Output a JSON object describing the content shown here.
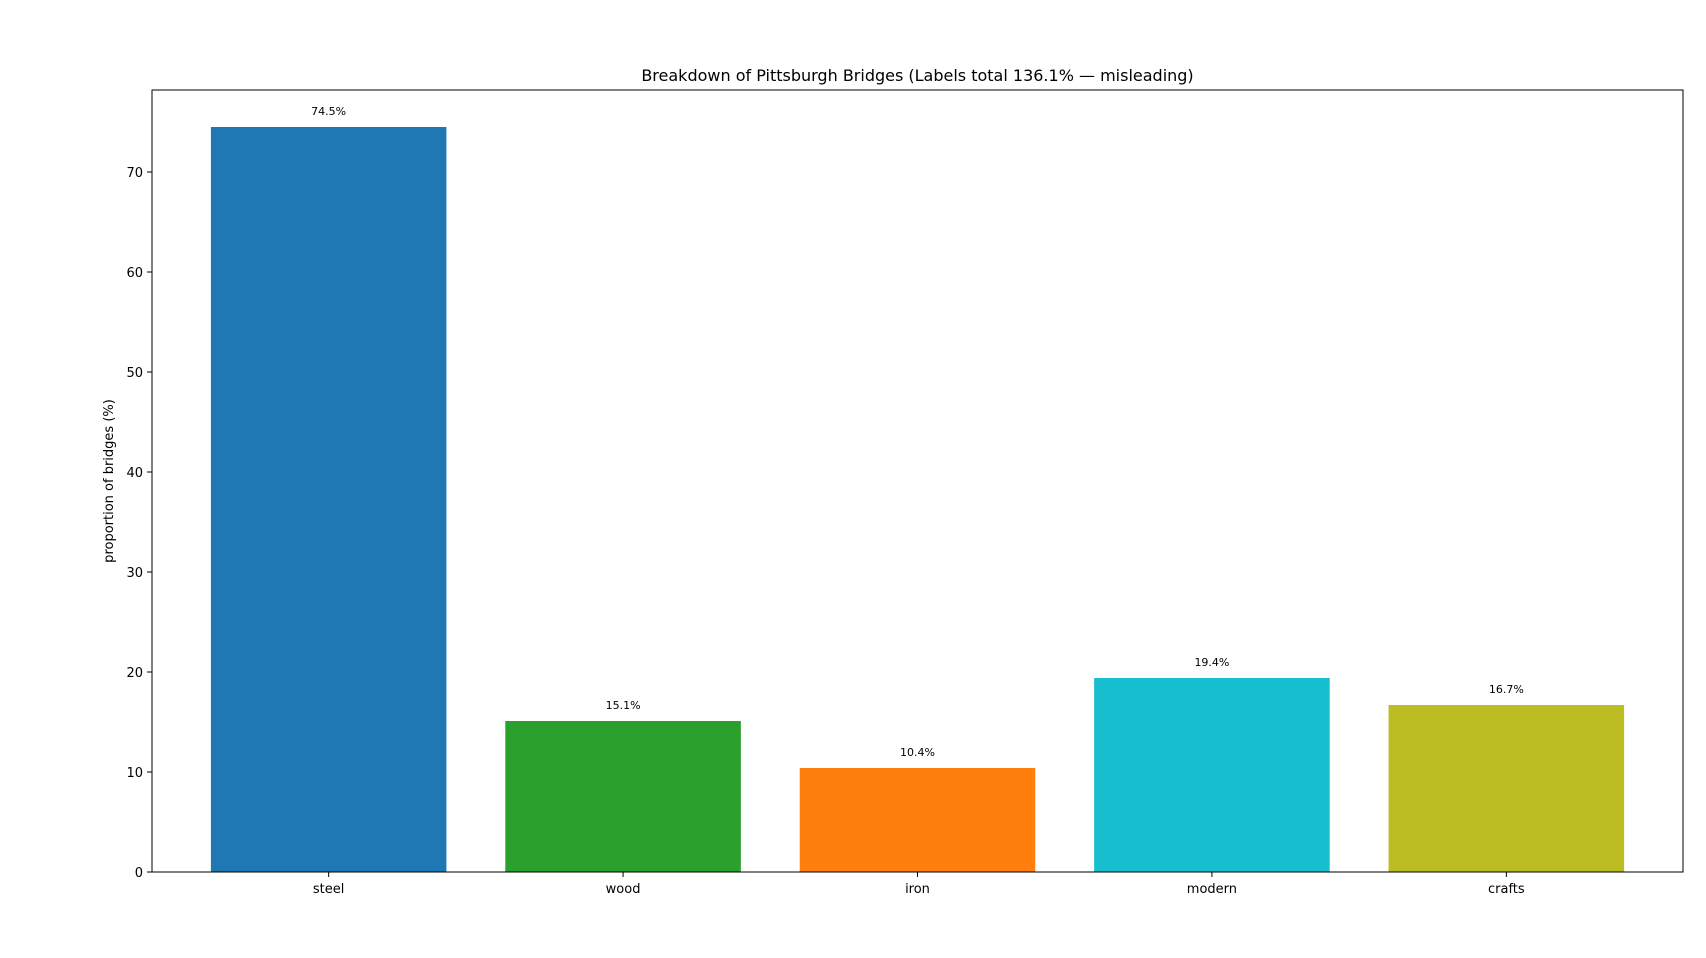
{
  "chart_data": {
    "type": "bar",
    "title": "Breakdown of Pittsburgh Bridges (Labels total 136.1% — misleading)",
    "xlabel": "",
    "ylabel": "proportion of bridges (%)",
    "categories": [
      "steel",
      "wood",
      "iron",
      "modern",
      "crafts"
    ],
    "values": [
      74.5,
      15.1,
      10.4,
      19.4,
      16.7
    ],
    "data_labels": [
      "74.5%",
      "15.1%",
      "10.4%",
      "19.4%",
      "16.7%"
    ],
    "colors": [
      "#1f77b4",
      "#2ca02c",
      "#ff7f0e",
      "#17becf",
      "#bcbd22"
    ],
    "ylim": [
      0,
      78.2
    ],
    "yticks": [
      0,
      10,
      20,
      30,
      40,
      50,
      60,
      70
    ],
    "grid": false,
    "legend": "none"
  }
}
